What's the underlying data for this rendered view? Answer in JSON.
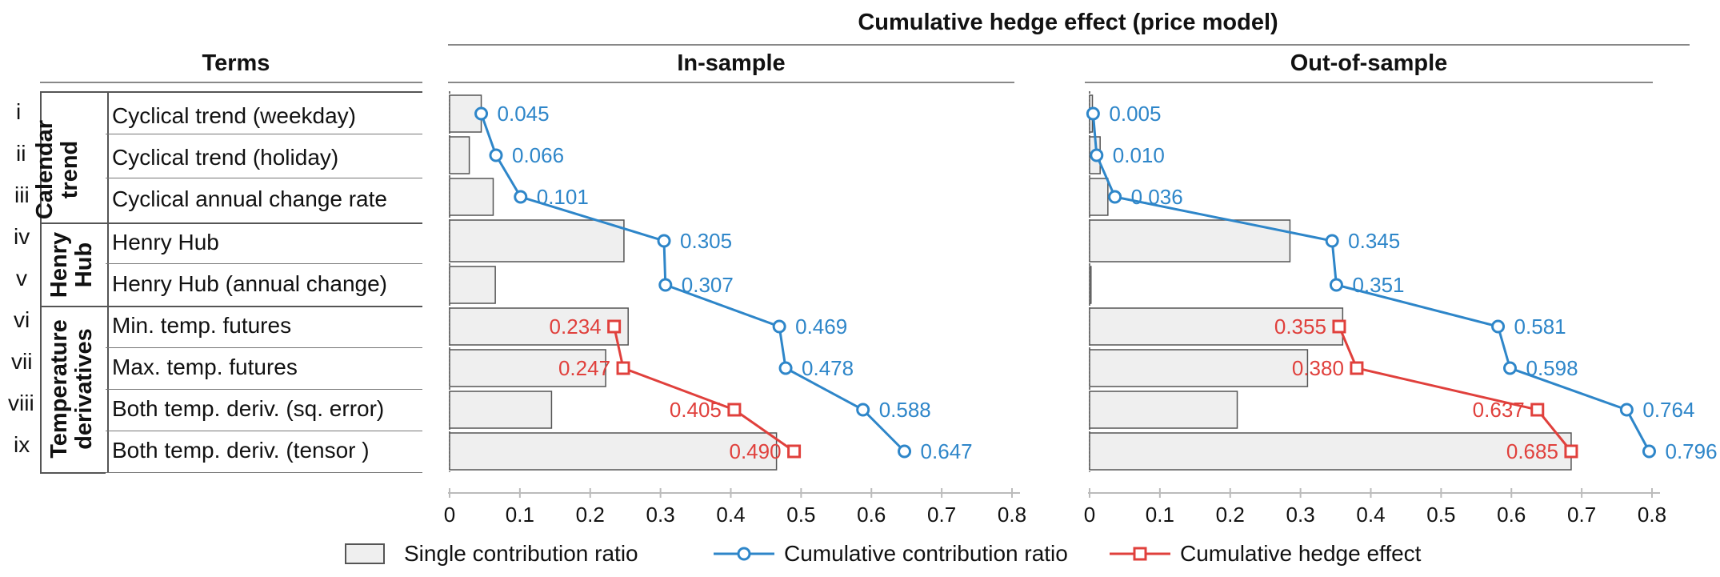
{
  "figure": {
    "main_title": "Cumulative hedge effect (price model)",
    "terms_header": "Terms",
    "in_sample_header": "In-sample",
    "out_sample_header": "Out-of-sample"
  },
  "groups": [
    {
      "label_lines": [
        "Calendar",
        "trend"
      ]
    },
    {
      "label_lines": [
        "Henry",
        "Hub"
      ]
    },
    {
      "label_lines": [
        "Temperature",
        "derivatives"
      ]
    }
  ],
  "rows": [
    {
      "roman": "i",
      "label": "Cyclical trend (weekday)"
    },
    {
      "roman": "ii",
      "label": "Cyclical trend (holiday)"
    },
    {
      "roman": "iii",
      "label": "Cyclical annual change rate"
    },
    {
      "roman": "iv",
      "label": "Henry Hub"
    },
    {
      "roman": "v",
      "label": "Henry Hub (annual change)"
    },
    {
      "roman": "vi",
      "label": "Min. temp. futures"
    },
    {
      "roman": "vii",
      "label": "Max. temp. futures"
    },
    {
      "roman": "viii",
      "label": "Both temp. deriv. (sq. error)"
    },
    {
      "roman": "ix",
      "label": "Both temp. deriv. (tensor )"
    }
  ],
  "legend": {
    "single": "Single contribution ratio",
    "cumulative": "Cumulative contribution ratio",
    "hedge": "Cumulative hedge effect"
  },
  "colors": {
    "bar_fill": "#efefef",
    "bar_stroke": "#555555",
    "cumulative": "#2e86c9",
    "hedge": "#e0403c"
  },
  "chart_data": [
    {
      "type": "bar",
      "title": "In-sample",
      "xlim": [
        0,
        0.8
      ],
      "xticks": [
        "0",
        "0.1",
        "0.2",
        "0.3",
        "0.4",
        "0.5",
        "0.6",
        "0.7",
        "0.8"
      ],
      "single_contribution": [
        0.045,
        0.028,
        0.062,
        0.248,
        0.065,
        0.254,
        0.222,
        0.145,
        0.465
      ],
      "cumulative_contribution": {
        "values": [
          0.045,
          0.066,
          0.101,
          0.305,
          0.307,
          0.469,
          0.478,
          0.588,
          0.647
        ],
        "labels": [
          "0.045",
          "0.066",
          "0.101",
          "0.305",
          "0.307",
          "0.469",
          "0.478",
          "0.588",
          "0.647"
        ]
      },
      "cumulative_hedge": {
        "start_row": 5,
        "values": [
          0.234,
          0.247,
          0.405,
          0.49
        ],
        "labels": [
          "0.234",
          "0.247",
          "0.405",
          "0.490"
        ]
      }
    },
    {
      "type": "bar",
      "title": "Out-of-sample",
      "xlim": [
        0,
        0.8
      ],
      "xticks": [
        "0",
        "0.1",
        "0.2",
        "0.3",
        "0.4",
        "0.5",
        "0.6",
        "0.7",
        "0.8"
      ],
      "single_contribution": [
        0.004,
        0.015,
        0.026,
        0.285,
        0.002,
        0.36,
        0.31,
        0.21,
        0.685
      ],
      "cumulative_contribution": {
        "values": [
          0.005,
          0.01,
          0.036,
          0.345,
          0.351,
          0.581,
          0.598,
          0.764,
          0.796
        ],
        "labels": [
          "0.005",
          "0.010",
          "0.036",
          "0.345",
          "0.351",
          "0.581",
          "0.598",
          "0.764",
          "0.796"
        ]
      },
      "cumulative_hedge": {
        "start_row": 5,
        "values": [
          0.355,
          0.38,
          0.637,
          0.685
        ],
        "labels": [
          "0.355",
          "0.380",
          "0.637",
          "0.685"
        ]
      }
    }
  ]
}
